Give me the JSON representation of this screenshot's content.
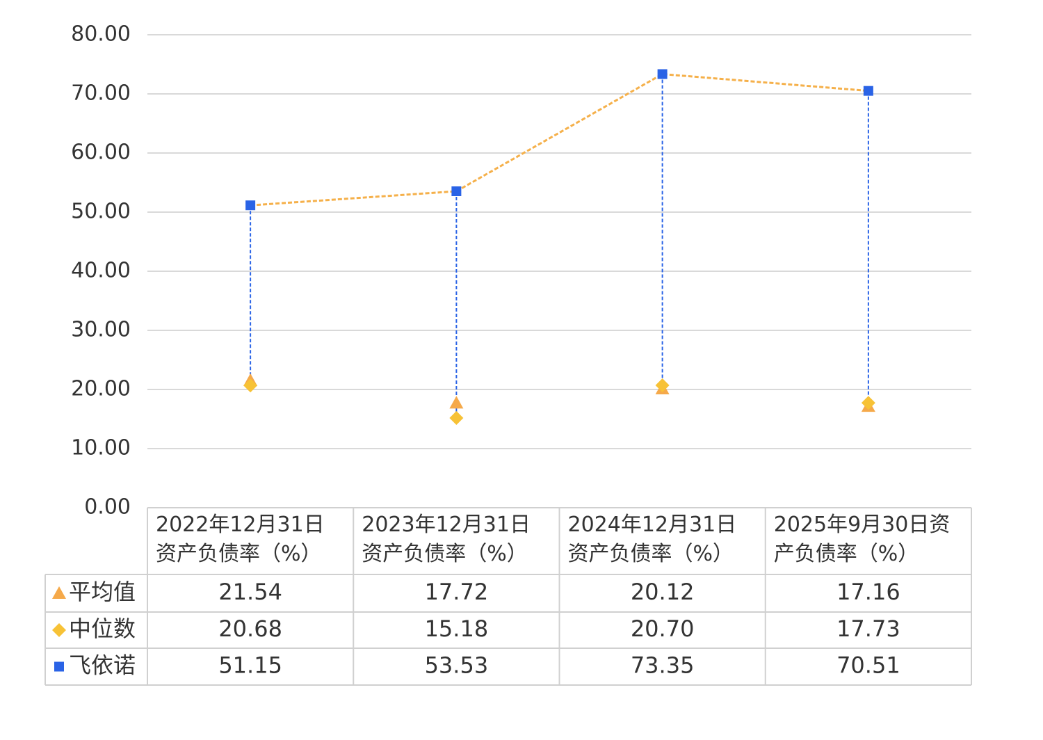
{
  "chart_data": {
    "type": "line",
    "categories": [
      "2022年12月31日资产负债率（%）",
      "2023年12月31日资产负债率（%）",
      "2024年12月31日资产负债率（%）",
      "2025年9月30日资产负债率（%）"
    ],
    "series": [
      {
        "name": "平均值",
        "color": "#f5a94a",
        "marker": "triangle",
        "values": [
          21.54,
          17.72,
          20.12,
          17.16
        ]
      },
      {
        "name": "中位数",
        "color": "#f7c236",
        "marker": "diamond",
        "values": [
          20.68,
          15.18,
          20.7,
          17.73
        ],
        "value_labels": [
          "20.68",
          "15.18",
          "20.70",
          "17.73"
        ]
      },
      {
        "name": "飞依诺",
        "color": "#2a63e6",
        "marker": "square",
        "line_color": "#f5b04a",
        "values": [
          51.15,
          53.53,
          73.35,
          70.51
        ]
      }
    ],
    "high_low_lines": true,
    "high_low_color": "#2a63e6",
    "ylim": [
      0,
      80
    ],
    "yticks": [
      {
        "value": 0,
        "label": "0.00"
      },
      {
        "value": 10,
        "label": "10.00"
      },
      {
        "value": 20,
        "label": "20.00"
      },
      {
        "value": 30,
        "label": "30.00"
      },
      {
        "value": 40,
        "label": "40.00"
      },
      {
        "value": 50,
        "label": "50.00"
      },
      {
        "value": 60,
        "label": "60.00"
      },
      {
        "value": 70,
        "label": "70.00"
      },
      {
        "value": 80,
        "label": "80.00"
      }
    ],
    "grid": true,
    "data_table": true
  }
}
